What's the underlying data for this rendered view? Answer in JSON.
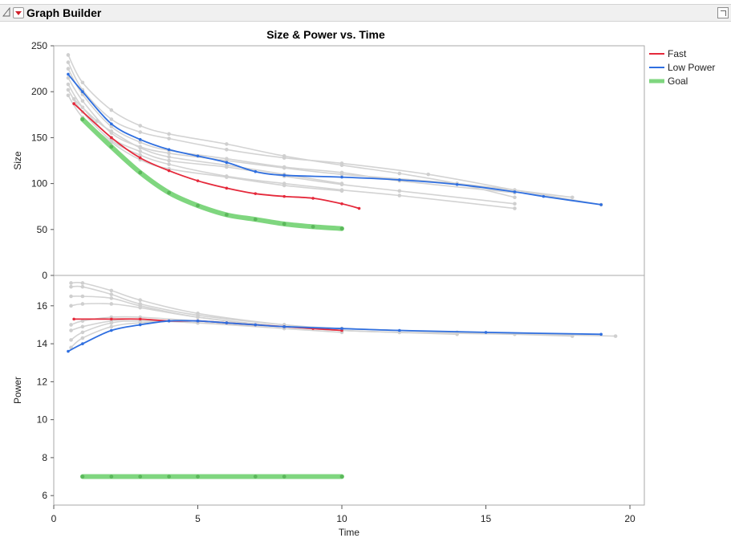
{
  "header": {
    "title": "Graph Builder"
  },
  "chart_data": {
    "type": "line",
    "title": "Size & Power vs. Time",
    "xlabel": "Time",
    "xlim": [
      0,
      20.5
    ],
    "x_ticks": [
      "0",
      "5",
      "10",
      "15",
      "20"
    ],
    "panels": [
      {
        "ylabel": "Size",
        "ylim": [
          0,
          250
        ],
        "y_ticks": [
          "0",
          "50",
          "100",
          "150",
          "200",
          "250"
        ],
        "series": [
          {
            "name": "Fast",
            "color": "#e5293b",
            "x": [
              0.7,
              2,
              3,
              4,
              5,
              6,
              7,
              8,
              9,
              10,
              10.6
            ],
            "y": [
              187,
              150,
              128,
              114,
              103,
              95,
              89,
              86,
              84,
              78,
              73
            ]
          },
          {
            "name": "Low Power",
            "color": "#2f6fe0",
            "x": [
              0.5,
              1,
              2,
              3,
              4,
              5,
              6,
              7,
              8,
              10,
              12,
              14,
              16,
              17,
              19
            ],
            "y": [
              219,
              200,
              165,
              148,
              137,
              130,
              123,
              113,
              109,
              107,
              104,
              99,
              91,
              86,
              77
            ]
          },
          {
            "name": "Goal",
            "color": "#7fd67f",
            "x": [
              1,
              2,
              3,
              4,
              5,
              6,
              7,
              8,
              9,
              10
            ],
            "y": [
              170,
              140,
              112,
              90,
              76,
              66,
              61,
              56,
              53,
              51
            ]
          }
        ]
      },
      {
        "ylabel": "Power",
        "ylim": [
          5.5,
          17.6
        ],
        "y_ticks": [
          "6",
          "8",
          "10",
          "12",
          "14",
          "16"
        ],
        "series": [
          {
            "name": "Fast",
            "color": "#e5293b",
            "x": [
              0.7,
              2,
              3,
              4,
              5,
              6,
              7,
              8,
              9,
              10
            ],
            "y": [
              15.3,
              15.3,
              15.3,
              15.2,
              15.2,
              15.1,
              15.0,
              14.9,
              14.8,
              14.7
            ]
          },
          {
            "name": "Low Power",
            "color": "#2f6fe0",
            "x": [
              0.5,
              1,
              2,
              3,
              4,
              5,
              6,
              7,
              8,
              10,
              12,
              15,
              19
            ],
            "y": [
              13.6,
              14.0,
              14.7,
              15.0,
              15.2,
              15.2,
              15.1,
              15.0,
              14.9,
              14.8,
              14.7,
              14.6,
              14.5
            ]
          },
          {
            "name": "Goal",
            "color": "#7fd67f",
            "x": [
              1,
              2,
              3,
              4,
              5,
              7,
              8,
              10
            ],
            "y": [
              7,
              7,
              7,
              7,
              7,
              7,
              7,
              7
            ]
          }
        ]
      }
    ],
    "legend": {
      "position": "top-right",
      "items": [
        {
          "label": "Fast",
          "color": "#e5293b"
        },
        {
          "label": "Low Power",
          "color": "#2f6fe0"
        },
        {
          "label": "Goal",
          "color": "#7fd67f"
        }
      ]
    },
    "background_series_color": "#d3d3d3",
    "background_series": {
      "size": [
        {
          "x": [
            0.5,
            1,
            2,
            3,
            4,
            6,
            8,
            10,
            12,
            14,
            16
          ],
          "y": [
            240,
            210,
            180,
            163,
            154,
            143,
            130,
            120,
            111,
            100,
            85
          ]
        },
        {
          "x": [
            0.5,
            1,
            2,
            3,
            4,
            6,
            8,
            10,
            13,
            16,
            19
          ],
          "y": [
            232,
            202,
            170,
            156,
            149,
            137,
            128,
            122,
            110,
            93,
            77
          ]
        },
        {
          "x": [
            0.5,
            1,
            2,
            3,
            4,
            6,
            8,
            10,
            12,
            16
          ],
          "y": [
            225,
            197,
            162,
            145,
            136,
            127,
            118,
            112,
            103,
            90
          ]
        },
        {
          "x": [
            0.5,
            1,
            2,
            3,
            4,
            6,
            8,
            10,
            14,
            18
          ],
          "y": [
            215,
            190,
            155,
            140,
            133,
            125,
            117,
            110,
            100,
            85
          ]
        },
        {
          "x": [
            0.5,
            1,
            2,
            3,
            4,
            6,
            8,
            10,
            12,
            16
          ],
          "y": [
            208,
            183,
            150,
            135,
            125,
            118,
            108,
            99,
            92,
            78
          ]
        },
        {
          "x": [
            0.5,
            1,
            2,
            3,
            4,
            6,
            8,
            10,
            12,
            16
          ],
          "y": [
            202,
            178,
            147,
            131,
            121,
            108,
            100,
            93,
            87,
            73
          ]
        },
        {
          "x": [
            0.5,
            1,
            2,
            3,
            4,
            6,
            8,
            10
          ],
          "y": [
            196,
            172,
            145,
            126,
            116,
            107,
            98,
            92
          ]
        },
        {
          "x": [
            0.7,
            1.5,
            2,
            3,
            4,
            6,
            8,
            10
          ],
          "y": [
            192,
            168,
            157,
            139,
            129,
            120,
            110,
            100
          ]
        }
      ],
      "power": [
        {
          "x": [
            0.6,
            1,
            2,
            3,
            5,
            8,
            10,
            14,
            19.5
          ],
          "y": [
            17.2,
            17.2,
            16.8,
            16.3,
            15.6,
            15.0,
            14.8,
            14.6,
            14.4
          ]
        },
        {
          "x": [
            0.6,
            1,
            2,
            3,
            5,
            8,
            10,
            14,
            18
          ],
          "y": [
            17.0,
            17.0,
            16.6,
            16.1,
            15.5,
            15.0,
            14.8,
            14.6,
            14.4
          ]
        },
        {
          "x": [
            0.6,
            1,
            2,
            3,
            5,
            8,
            10,
            12,
            16
          ],
          "y": [
            16.5,
            16.5,
            16.4,
            16.0,
            15.4,
            14.9,
            14.7,
            14.6,
            14.5
          ]
        },
        {
          "x": [
            0.6,
            1,
            2,
            3,
            5,
            8,
            10,
            12
          ],
          "y": [
            16.0,
            16.1,
            16.1,
            15.9,
            15.4,
            14.9,
            14.7,
            14.6
          ]
        },
        {
          "x": [
            0.6,
            1,
            2,
            3,
            5,
            8,
            10
          ],
          "y": [
            15.0,
            15.2,
            15.4,
            15.4,
            15.2,
            14.9,
            14.7
          ]
        },
        {
          "x": [
            0.6,
            1,
            2,
            3,
            5,
            8,
            10
          ],
          "y": [
            14.2,
            14.6,
            15.1,
            15.2,
            15.1,
            14.8,
            14.6
          ]
        },
        {
          "x": [
            0.6,
            1,
            2,
            3,
            5,
            8,
            10
          ],
          "y": [
            14.7,
            14.9,
            15.2,
            15.3,
            15.1,
            14.9,
            14.7
          ]
        },
        {
          "x": [
            0.6,
            1,
            2,
            3,
            5,
            8,
            10,
            14
          ],
          "y": [
            13.8,
            14.3,
            14.9,
            15.1,
            15.2,
            14.9,
            14.7,
            14.5
          ]
        }
      ]
    }
  }
}
